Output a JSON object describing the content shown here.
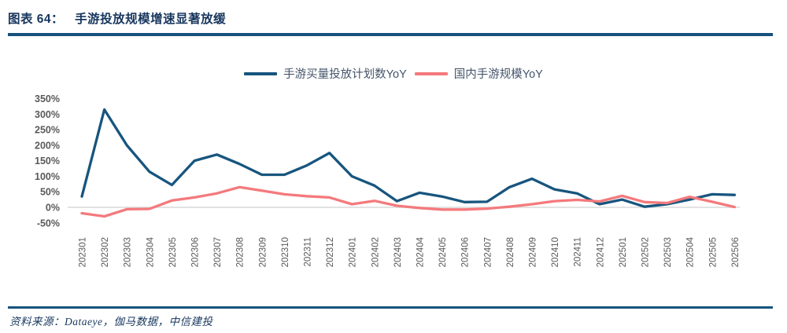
{
  "header": {
    "figure_label": "图表 64：",
    "title": "手游投放规模增速显著放缓"
  },
  "footer": {
    "source": "资料来源：Dataeye，伽马数据，中信建投"
  },
  "colors": {
    "navy_rule": "#17527D",
    "title_text": "#17365D",
    "legend_text": "#44546A",
    "axis_text": "#595959",
    "zero_line": "#D9D9D9",
    "blue_line": "#17557E",
    "pink_line": "#F4797C"
  },
  "chart_data": {
    "type": "line",
    "title": "手游投放规模增速显著放缓",
    "xlabel": "",
    "ylabel": "",
    "ylim": [
      -50,
      350
    ],
    "ytick_step": 50,
    "ytick_format": "percent",
    "grid": "zero-line-only",
    "legend_position": "top",
    "categories": [
      "202301",
      "202302",
      "202303",
      "202304",
      "202305",
      "202306",
      "202307",
      "202308",
      "202309",
      "202310",
      "202311",
      "202312",
      "202401",
      "202402",
      "202403",
      "202404",
      "202405",
      "202406",
      "202407",
      "202408",
      "202409",
      "202410",
      "202411",
      "202412",
      "202501",
      "202502",
      "202503",
      "202504",
      "202505",
      "202506"
    ],
    "series": [
      {
        "name": "手游买量投放计划数YoY",
        "color": "#17557E",
        "values": [
          35,
          315,
          200,
          115,
          72,
          150,
          170,
          140,
          105,
          105,
          135,
          175,
          100,
          70,
          20,
          47,
          35,
          17,
          18,
          65,
          92,
          58,
          45,
          10,
          25,
          2,
          10,
          25,
          42,
          40
        ]
      },
      {
        "name": "国内手游规模YoY",
        "color": "#F4797C",
        "values": [
          -19,
          -29,
          -6,
          -5,
          22,
          32,
          45,
          65,
          54,
          42,
          36,
          32,
          10,
          21,
          5,
          -2,
          -7,
          -7,
          -4,
          2,
          10,
          20,
          24,
          19,
          37,
          17,
          14,
          34,
          18,
          1
        ]
      }
    ]
  }
}
